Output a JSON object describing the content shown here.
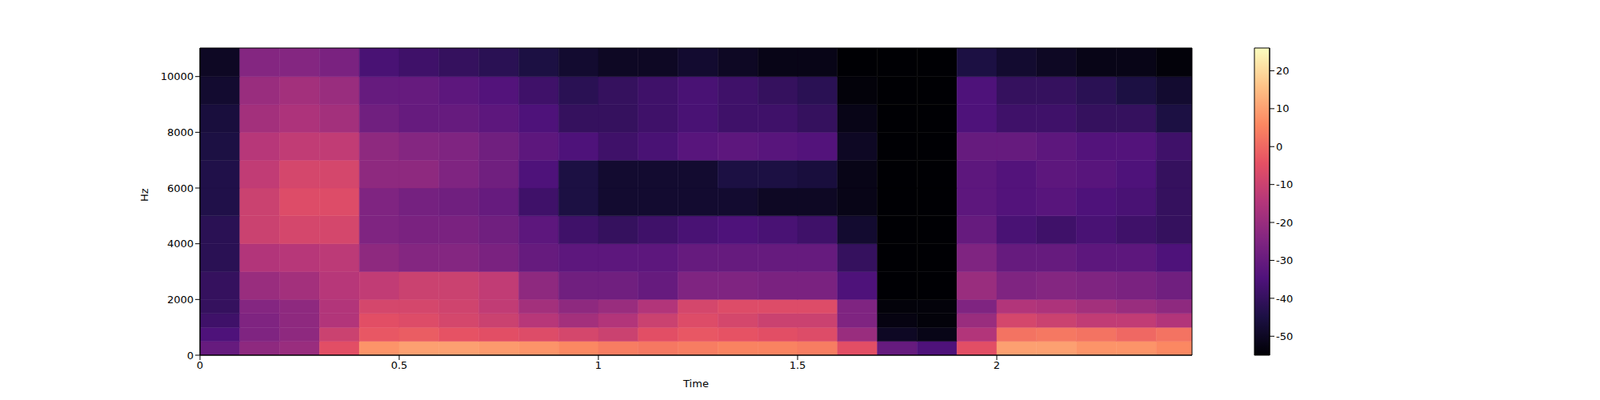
{
  "chart_data": {
    "type": "heatmap",
    "x_label": "Time",
    "y_label": "Hz",
    "xlim": [
      0,
      2.49
    ],
    "xticks": [
      0,
      0.5,
      1,
      1.5,
      2
    ],
    "ylim": [
      0,
      11025
    ],
    "yticks": [
      0,
      2000,
      4000,
      6000,
      8000,
      10000
    ],
    "color": "magma",
    "x_bins": [
      0,
      0.1,
      0.2,
      0.3,
      0.4,
      0.5,
      0.6,
      0.7,
      0.8,
      0.9,
      1.0,
      1.1,
      1.2,
      1.3,
      1.4,
      1.5,
      1.6,
      1.7,
      1.8,
      1.9,
      2.0,
      2.1,
      2.2,
      2.3,
      2.4,
      2.49
    ],
    "y_bins": [
      0,
      500,
      1000,
      1500,
      2000,
      3000,
      4000,
      5000,
      6000,
      7000,
      8000,
      9000,
      10000,
      11025
    ],
    "cells": [
      [
        -30,
        -22,
        -20,
        -5,
        8,
        10,
        10,
        9,
        8,
        6,
        4,
        3,
        4,
        5,
        5,
        4,
        -5,
        -30,
        -35,
        -5,
        10,
        10,
        8,
        8,
        6
      ],
      [
        -35,
        -25,
        -22,
        -10,
        -3,
        -2,
        -4,
        -5,
        -6,
        -8,
        -10,
        -5,
        -3,
        -4,
        -5,
        -6,
        -20,
        -50,
        -52,
        -15,
        2,
        3,
        2,
        0,
        2
      ],
      [
        -38,
        -25,
        -22,
        -15,
        -5,
        -6,
        -8,
        -10,
        -14,
        -18,
        -15,
        -10,
        -6,
        -8,
        -10,
        -10,
        -25,
        -53,
        -54,
        -20,
        -8,
        -10,
        -12,
        -12,
        -15
      ],
      [
        -40,
        -24,
        -22,
        -15,
        -8,
        -8,
        -9,
        -12,
        -18,
        -22,
        -20,
        -15,
        -8,
        -6,
        -6,
        -6,
        -25,
        -54,
        -54,
        -25,
        -15,
        -16,
        -18,
        -20,
        -22
      ],
      [
        -40,
        -20,
        -18,
        -14,
        -12,
        -10,
        -10,
        -12,
        -22,
        -28,
        -28,
        -30,
        -25,
        -25,
        -26,
        -26,
        -35,
        -55,
        -55,
        -20,
        -25,
        -24,
        -25,
        -26,
        -28
      ],
      [
        -42,
        -15,
        -14,
        -13,
        -22,
        -24,
        -24,
        -26,
        -30,
        -32,
        -32,
        -32,
        -30,
        -30,
        -30,
        -30,
        -40,
        -55,
        -55,
        -25,
        -30,
        -30,
        -32,
        -32,
        -35
      ],
      [
        -42,
        -10,
        -8,
        -8,
        -25,
        -26,
        -26,
        -28,
        -32,
        -38,
        -40,
        -38,
        -36,
        -35,
        -36,
        -38,
        -48,
        -55,
        -55,
        -30,
        -36,
        -38,
        -36,
        -38,
        -40
      ],
      [
        -44,
        -10,
        -6,
        -6,
        -25,
        -27,
        -28,
        -30,
        -38,
        -45,
        -48,
        -48,
        -48,
        -48,
        -50,
        -50,
        -52,
        -55,
        -55,
        -32,
        -34,
        -33,
        -35,
        -36,
        -40
      ],
      [
        -44,
        -12,
        -8,
        -8,
        -22,
        -22,
        -25,
        -28,
        -35,
        -45,
        -48,
        -48,
        -48,
        -45,
        -45,
        -46,
        -52,
        -55,
        -55,
        -32,
        -34,
        -32,
        -33,
        -35,
        -40
      ],
      [
        -45,
        -14,
        -12,
        -12,
        -22,
        -24,
        -25,
        -28,
        -32,
        -35,
        -38,
        -36,
        -33,
        -32,
        -33,
        -34,
        -50,
        -55,
        -55,
        -30,
        -30,
        -32,
        -34,
        -34,
        -38
      ],
      [
        -46,
        -18,
        -16,
        -18,
        -28,
        -30,
        -30,
        -32,
        -35,
        -40,
        -40,
        -38,
        -36,
        -38,
        -38,
        -40,
        -52,
        -55,
        -55,
        -35,
        -38,
        -38,
        -40,
        -40,
        -45
      ],
      [
        -48,
        -20,
        -18,
        -20,
        -30,
        -30,
        -32,
        -34,
        -38,
        -42,
        -40,
        -38,
        -36,
        -38,
        -40,
        -42,
        -54,
        -55,
        -55,
        -35,
        -40,
        -40,
        -42,
        -45,
        -48
      ],
      [
        -50,
        -24,
        -24,
        -26,
        -36,
        -38,
        -40,
        -42,
        -45,
        -48,
        -50,
        -50,
        -48,
        -50,
        -52,
        -52,
        -55,
        -55,
        -55,
        -45,
        -48,
        -50,
        -52,
        -52,
        -54
      ]
    ],
    "colorbar_lim": [
      -55,
      26
    ],
    "colorbar_ticks": [
      -50,
      -40,
      -30,
      -20,
      -10,
      0,
      10,
      20
    ]
  }
}
